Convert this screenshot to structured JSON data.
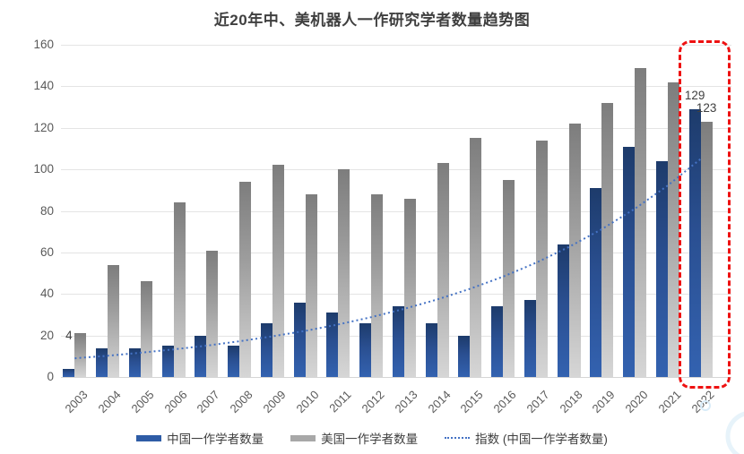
{
  "chart_data": {
    "type": "bar",
    "title": "近20年中、美机器人一作研究学者数量趋势图",
    "categories": [
      "2003",
      "2004",
      "2005",
      "2006",
      "2007",
      "2008",
      "2009",
      "2010",
      "2011",
      "2012",
      "2013",
      "2014",
      "2015",
      "2016",
      "2017",
      "2018",
      "2019",
      "2020",
      "2021",
      "2022"
    ],
    "series": [
      {
        "name": "中国一作学者数量",
        "color": "#2e5ca6",
        "values": [
          4,
          14,
          14,
          15,
          20,
          15,
          26,
          36,
          31,
          26,
          34,
          26,
          20,
          34,
          37,
          64,
          91,
          111,
          104,
          129
        ]
      },
      {
        "name": "美国一作学者数量",
        "color": "#a8a8a8",
        "values": [
          21,
          54,
          46,
          84,
          61,
          94,
          102,
          88,
          100,
          88,
          86,
          103,
          115,
          95,
          114,
          122,
          132,
          149,
          142,
          123
        ]
      }
    ],
    "trend": {
      "name": "指数 (中国一作学者数量)",
      "type": "exponential",
      "color": "#4472c4",
      "values": [
        9,
        10.2,
        11.7,
        13.3,
        15.1,
        17.2,
        19.6,
        22.2,
        25.3,
        28.8,
        32.8,
        37.3,
        42.5,
        48.3,
        55,
        62.6,
        71.2,
        81,
        92.2,
        105
      ]
    },
    "ylabel": "",
    "xlabel": "",
    "ylim": [
      0,
      160
    ],
    "ytick_step": 20,
    "grid": true,
    "legend_position": "bottom",
    "data_labels": [
      {
        "series": 0,
        "index": 0,
        "text": "4"
      },
      {
        "series": 0,
        "index": 19,
        "text": "129"
      },
      {
        "series": 1,
        "index": 19,
        "text": "123"
      }
    ],
    "highlight": {
      "shape": "dashed-red-box",
      "category": "2022",
      "color": "#ee1111"
    }
  },
  "decorations": {
    "watermark_circle_color": "#d9ecf8"
  }
}
